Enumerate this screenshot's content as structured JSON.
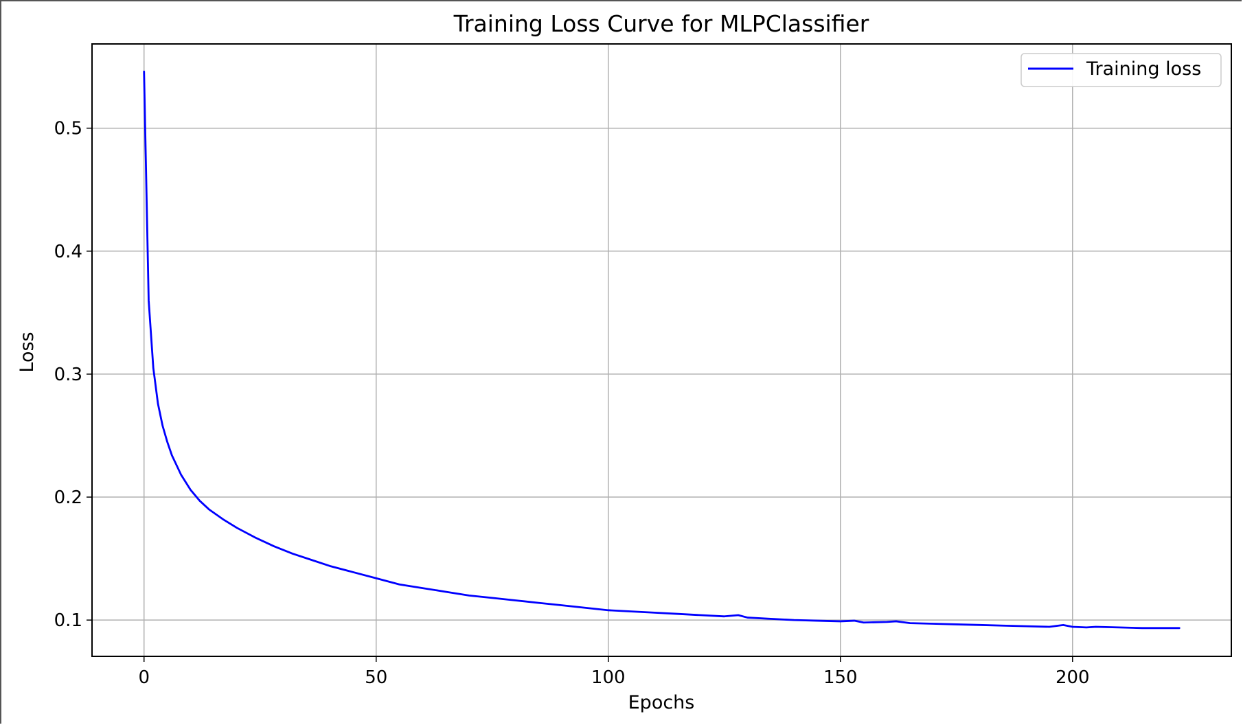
{
  "chart_data": {
    "type": "line",
    "title": "Training Loss Curve for MLPClassifier",
    "xlabel": "Epochs",
    "ylabel": "Loss",
    "xlim": [
      -11.2,
      234.2
    ],
    "ylim": [
      0.0705,
      0.5685
    ],
    "xticks": [
      0,
      50,
      100,
      150,
      200
    ],
    "yticks": [
      0.1,
      0.2,
      0.3,
      0.4,
      0.5
    ],
    "xtick_labels": [
      "0",
      "50",
      "100",
      "150",
      "200"
    ],
    "ytick_labels": [
      "0.1",
      "0.2",
      "0.3",
      "0.4",
      "0.5"
    ],
    "grid": true,
    "legend_position": "top-right",
    "series": [
      {
        "name": "Training loss",
        "color": "#0000ff",
        "x": [
          0,
          1,
          2,
          3,
          4,
          5,
          6,
          8,
          10,
          12,
          14,
          17,
          20,
          24,
          28,
          32,
          36,
          40,
          45,
          50,
          55,
          60,
          65,
          70,
          75,
          80,
          85,
          90,
          95,
          100,
          105,
          110,
          115,
          120,
          125,
          128,
          130,
          135,
          140,
          145,
          150,
          153,
          155,
          160,
          162,
          165,
          170,
          175,
          180,
          185,
          190,
          195,
          198,
          200,
          203,
          205,
          210,
          215,
          220,
          223
        ],
        "y": [
          0.546,
          0.36,
          0.305,
          0.276,
          0.258,
          0.245,
          0.234,
          0.218,
          0.206,
          0.197,
          0.19,
          0.182,
          0.175,
          0.167,
          0.16,
          0.154,
          0.149,
          0.144,
          0.139,
          0.134,
          0.129,
          0.126,
          0.123,
          0.12,
          0.118,
          0.116,
          0.114,
          0.112,
          0.11,
          0.108,
          0.107,
          0.106,
          0.105,
          0.104,
          0.103,
          0.104,
          0.102,
          0.101,
          0.1,
          0.0995,
          0.099,
          0.0995,
          0.098,
          0.0985,
          0.099,
          0.0975,
          0.097,
          0.0965,
          0.096,
          0.0955,
          0.095,
          0.0945,
          0.096,
          0.0945,
          0.094,
          0.0945,
          0.094,
          0.0935,
          0.0935,
          0.0935
        ]
      }
    ]
  }
}
